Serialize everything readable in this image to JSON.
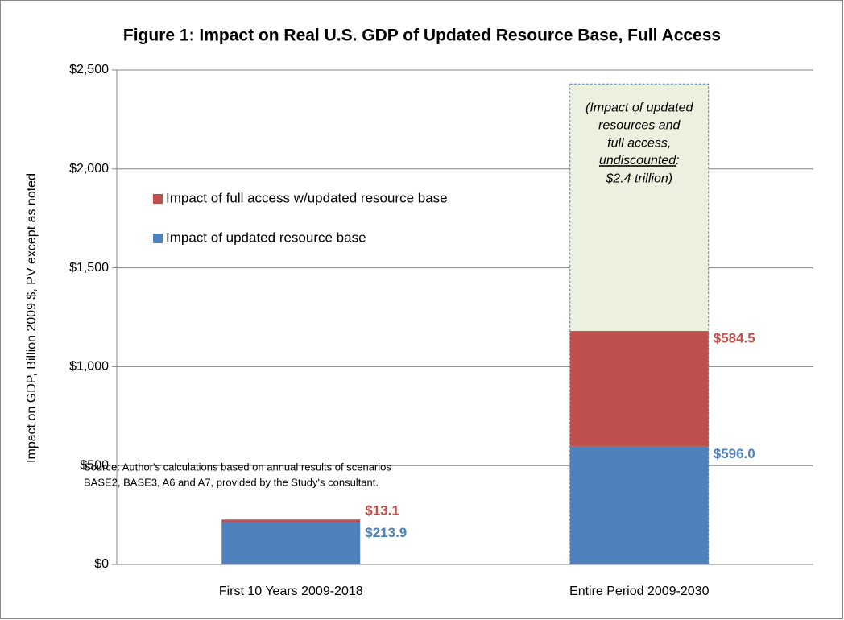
{
  "chart_data": {
    "type": "stacked_bar",
    "title": "Figure 1: Impact on Real U.S. GDP of Updated Resource Base, Full Access",
    "y_label": "Impact on GDP, Billion 2009 $, PV except as noted",
    "categories": [
      "First 10 Years 2009-2018",
      "Entire Period 2009-2030"
    ],
    "series": [
      {
        "name": "Impact of updated resource base",
        "color": "#4f81bd",
        "values": [
          213.9,
          596.0
        ],
        "value_labels": [
          "$213.9",
          "$596.0"
        ]
      },
      {
        "name": "Impact of full access w/updated resource base",
        "color": "#c0504d",
        "values": [
          13.1,
          584.5
        ],
        "value_labels": [
          "$13.1",
          "$584.5"
        ]
      }
    ],
    "ylim": [
      0,
      2500
    ],
    "yticks": [
      {
        "value": 0,
        "label": "$0"
      },
      {
        "value": 500,
        "label": "$500"
      },
      {
        "value": 1000,
        "label": "$1,000"
      },
      {
        "value": 1500,
        "label": "$1,500"
      },
      {
        "value": 2000,
        "label": "$2,000"
      },
      {
        "value": 2500,
        "label": "$2,500"
      }
    ],
    "grid": true,
    "legend": "upper left",
    "annotation": {
      "category": 1,
      "value": 2430,
      "color": "#ebf1de",
      "lines": [
        "(Impact of updated",
        "resources and",
        "full access,"
      ],
      "underlined": "undiscounted",
      "after_underline": ":",
      "last": "$2.4 trillion)"
    },
    "source": [
      "Source: Author's calculations based on annual results of scenarios",
      "BASE2, BASE3, A6 and A7, provided by the Study's consultant."
    ]
  }
}
